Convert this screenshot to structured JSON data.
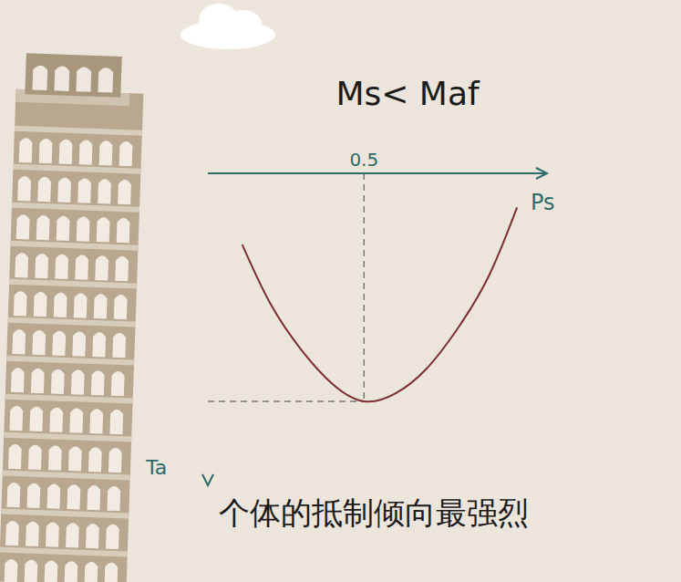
{
  "chart_data": {
    "type": "line",
    "title": "Ms< Maf",
    "annotations": [
      "个体的抵制倾向最强烈"
    ],
    "x_label": "Ps",
    "y_label": "Ta",
    "x": [
      0.11,
      0.2,
      0.3,
      0.4,
      0.5,
      0.6,
      0.7,
      0.8,
      0.9,
      0.99
    ],
    "values": [
      0.23,
      0.42,
      0.57,
      0.68,
      0.735,
      0.71,
      0.63,
      0.5,
      0.33,
      0.11
    ],
    "color": "#7b2e2e",
    "xlim": [
      0,
      1.08
    ],
    "xticks": [
      0.5
    ],
    "ylim": [
      0,
      1
    ],
    "yticks": [],
    "tick_labels": "x",
    "grid": false,
    "line_style": "solid"
  }
}
